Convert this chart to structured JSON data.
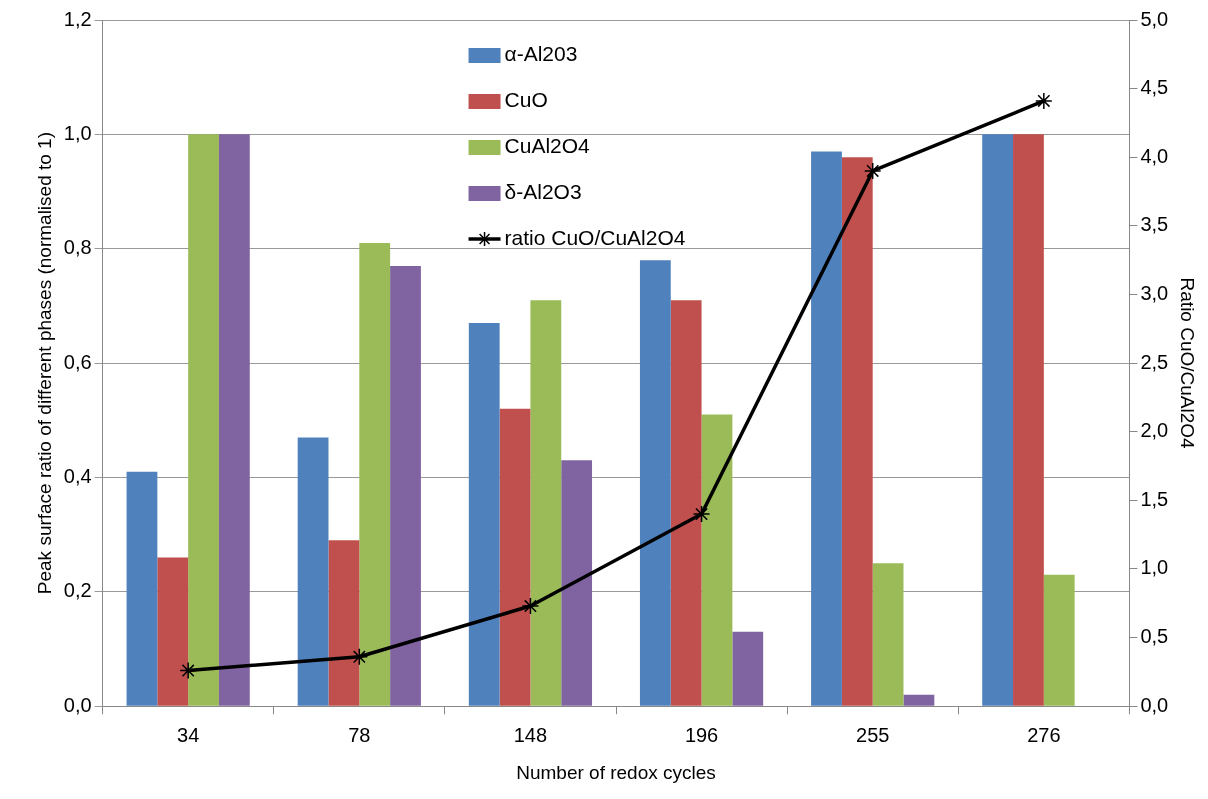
{
  "chart_data": {
    "type": "bar",
    "xlabel": "Number of redox cycles",
    "ylabel": "Peak surface ratio of different phases (normalised to 1)",
    "y2label": "Ratio CuO/CuAl2O4",
    "categories": [
      "34",
      "78",
      "148",
      "196",
      "255",
      "276"
    ],
    "series": [
      {
        "name": "α-Al203",
        "color": "#4f81bd",
        "values": [
          0.41,
          0.47,
          0.67,
          0.78,
          0.97,
          1.0
        ]
      },
      {
        "name": "CuO",
        "color": "#c0504d",
        "values": [
          0.26,
          0.29,
          0.52,
          0.71,
          0.96,
          1.0
        ]
      },
      {
        "name": "CuAl2O4",
        "color": "#9bbb59",
        "values": [
          1.0,
          0.81,
          0.71,
          0.51,
          0.25,
          0.23
        ]
      },
      {
        "name": "δ-Al2O3",
        "color": "#8064a2",
        "values": [
          1.0,
          0.77,
          0.43,
          0.13,
          0.02,
          null
        ]
      },
      {
        "name": "ratio CuO/CuAl2O4",
        "type": "line",
        "axis": "y2",
        "marker": "cross",
        "color": "#000000",
        "values": [
          0.26,
          0.36,
          0.73,
          1.4,
          3.9,
          4.41
        ]
      }
    ],
    "ylim": [
      0,
      1.2
    ],
    "yticks": [
      {
        "value": 0,
        "label": "0,0"
      },
      {
        "value": 0.2,
        "label": "0,2"
      },
      {
        "value": 0.4,
        "label": "0,4"
      },
      {
        "value": 0.6,
        "label": "0,6"
      },
      {
        "value": 0.8,
        "label": "0,8"
      },
      {
        "value": 1.0,
        "label": "1,0"
      },
      {
        "value": 1.2,
        "label": "1,2"
      }
    ],
    "y2lim": [
      0,
      5
    ],
    "y2ticks": [
      {
        "value": 0,
        "label": "0,0"
      },
      {
        "value": 0.5,
        "label": "0,5"
      },
      {
        "value": 1,
        "label": "1,0"
      },
      {
        "value": 1.5,
        "label": "1,5"
      },
      {
        "value": 2,
        "label": "2,0"
      },
      {
        "value": 2.5,
        "label": "2,5"
      },
      {
        "value": 3,
        "label": "3,0"
      },
      {
        "value": 3.5,
        "label": "3,5"
      },
      {
        "value": 4,
        "label": "4,0"
      },
      {
        "value": 4.5,
        "label": "4,5"
      },
      {
        "value": 5,
        "label": "5,0"
      }
    ],
    "grid": "y",
    "legend": "top"
  }
}
